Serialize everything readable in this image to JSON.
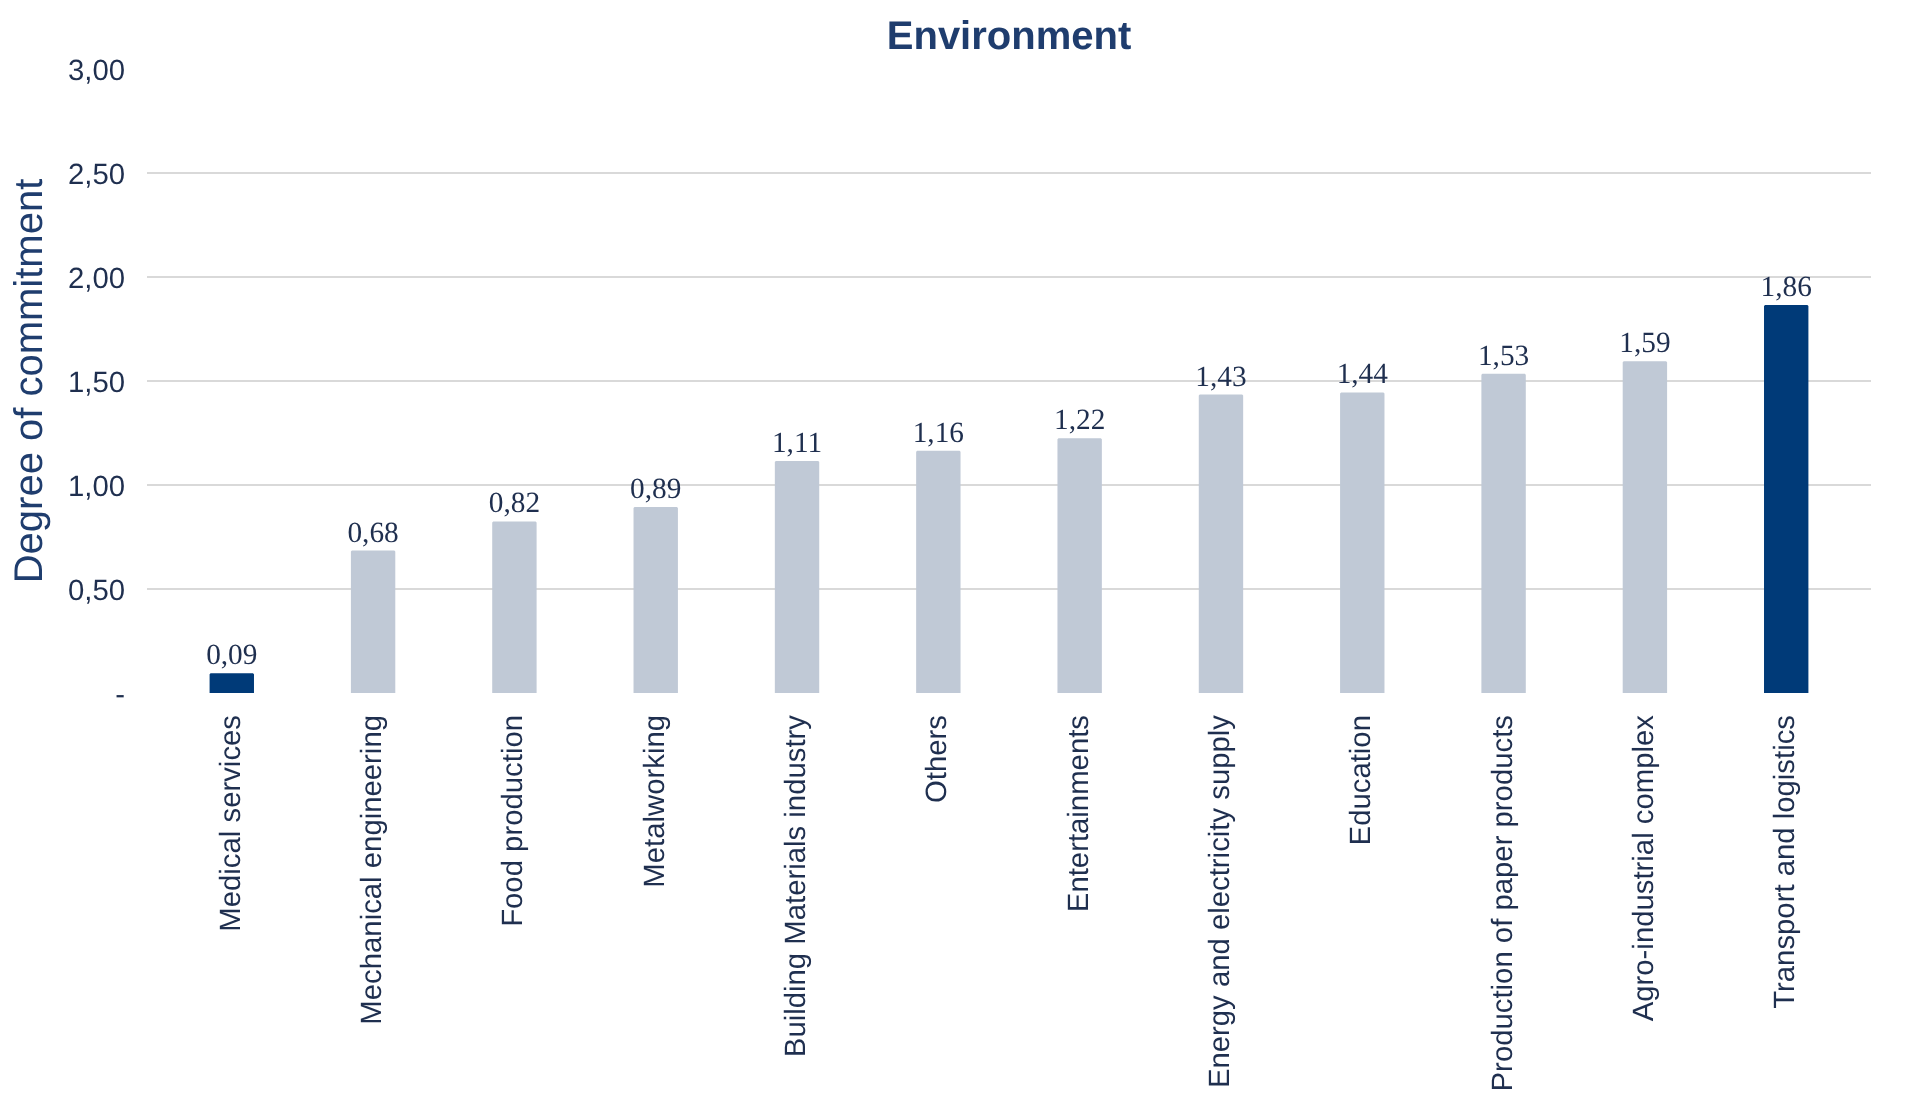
{
  "chart_data": {
    "type": "bar",
    "title": "Environment",
    "ylabel": "Degree of commitment",
    "categories": [
      "Medical services",
      "Mechanical engineering",
      "Food production",
      "Metalworking",
      "Building Materials industry",
      "Others",
      "Entertainments",
      "Energy and electricity supply",
      "Education",
      "Production of paper products",
      "Agro-industrial complex",
      "Transport and logistics"
    ],
    "values": [
      0.09,
      0.68,
      0.82,
      0.89,
      1.11,
      1.16,
      1.22,
      1.43,
      1.44,
      1.53,
      1.59,
      1.86
    ],
    "colors": [
      "#003a78",
      "#c0c9d6",
      "#c0c9d6",
      "#c0c9d6",
      "#c0c9d6",
      "#c0c9d6",
      "#c0c9d6",
      "#c0c9d6",
      "#c0c9d6",
      "#c0c9d6",
      "#c0c9d6",
      "#003a78"
    ],
    "value_labels": [
      "0,09",
      "0,68",
      "0,82",
      "0,89",
      "1,11",
      "1,16",
      "1,22",
      "1,43",
      "1,44",
      "1,53",
      "1,59",
      "1,86"
    ],
    "ylim": [
      0,
      3
    ],
    "yticks": [
      {
        "value": 0,
        "label": "-"
      },
      {
        "value": 0.5,
        "label": "0,50"
      },
      {
        "value": 1,
        "label": "1,00"
      },
      {
        "value": 1.5,
        "label": "1,50"
      },
      {
        "value": 2,
        "label": "2,00"
      },
      {
        "value": 2.5,
        "label": "2,50"
      },
      {
        "value": 3,
        "label": "3,00"
      }
    ],
    "grid": "y"
  }
}
